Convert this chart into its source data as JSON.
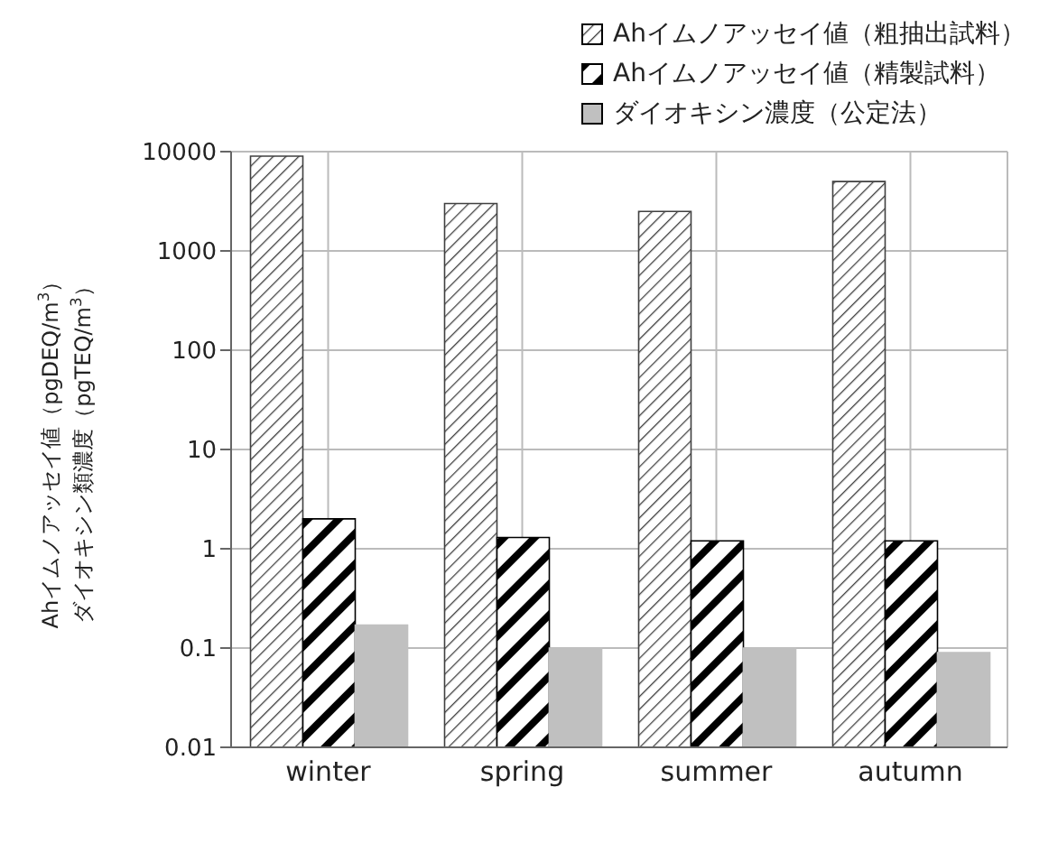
{
  "chart_data": {
    "type": "bar",
    "categories": [
      "winter",
      "spring",
      "summer",
      "autumn"
    ],
    "ylabel": "Ahイムノアッセイ値（pgDEQ/m$^{3}$）ダイオキシン類濃度（pgTEQ/m$^{3}$）",
    "series": [
      {
        "name": "Ahイムノアッセイ値（粗抽出試料）",
        "color": "#404040",
        "values": [
          9000,
          3000,
          2500,
          5000
        ]
      },
      {
        "name": "Ahイムノアッセイ値（精製試料）",
        "color": "#000000",
        "values": [
          2,
          1.3,
          1.2,
          1.2
        ]
      },
      {
        "name": "ダイオキシン濃度（公定法）",
        "color": "#c0c0c0",
        "values": [
          0.17,
          0.1,
          0.1,
          0.09
        ]
      }
    ],
    "log": true,
    "ylim": [
      0.01,
      10000
    ],
    "yticks": [
      0.01,
      0.1,
      1,
      10,
      100,
      1000,
      10000
    ],
    "grid": true,
    "legend": "top right"
  }
}
